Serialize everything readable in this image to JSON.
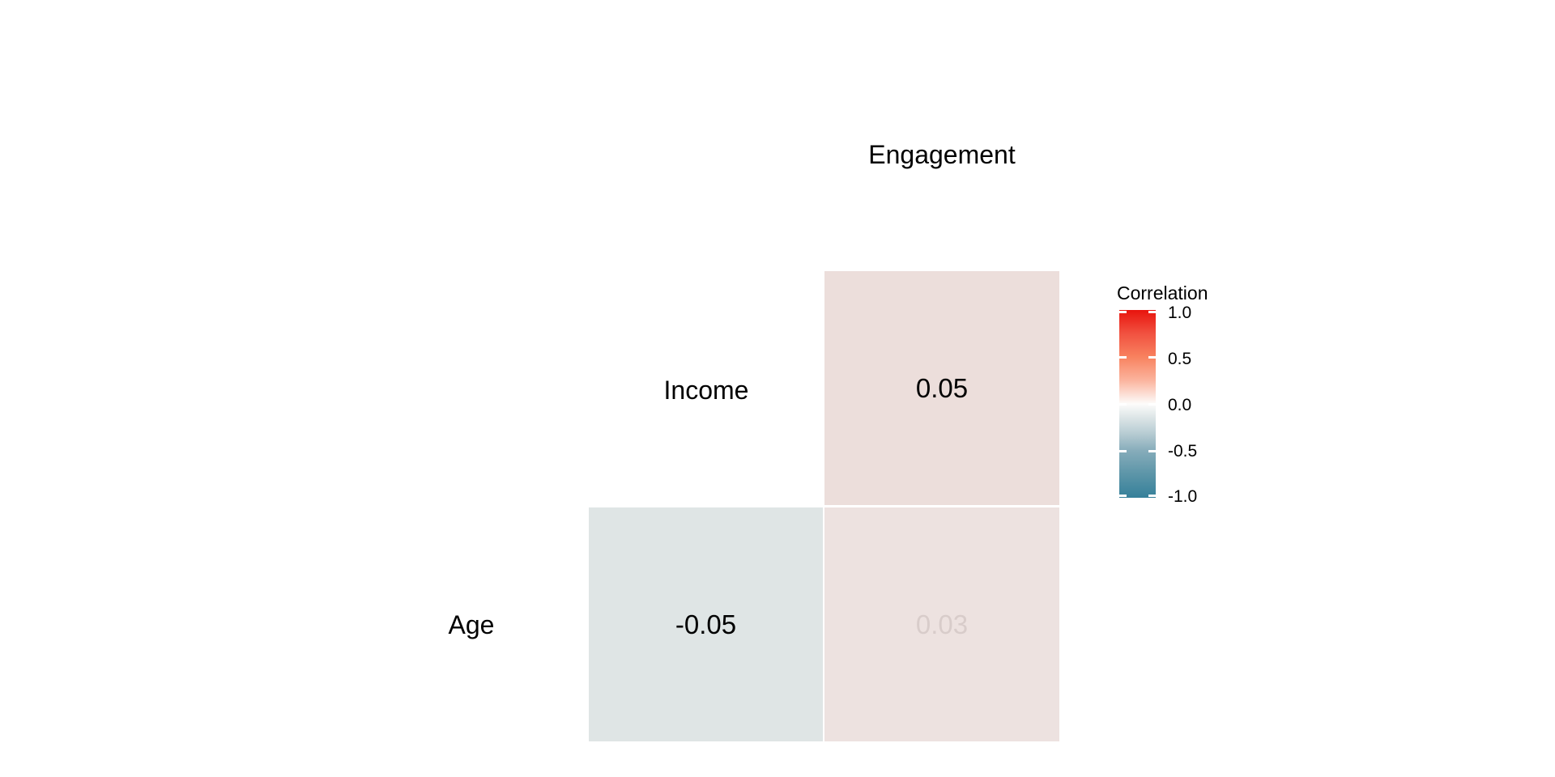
{
  "chart_data": {
    "type": "heatmap",
    "subtype": "correlation-matrix-lower-triangle",
    "variables": [
      "Age",
      "Income",
      "Engagement"
    ],
    "cells": [
      {
        "row": "Income",
        "col": "Engagement",
        "value": 0.05,
        "label": "0.05",
        "fill": "#ECDEDB",
        "label_color": "#000000"
      },
      {
        "row": "Age",
        "col": "Income",
        "value": -0.05,
        "label": "-0.05",
        "fill": "#DFE5E5",
        "label_color": "#000000"
      },
      {
        "row": "Age",
        "col": "Engagement",
        "value": 0.03,
        "label": "0.03",
        "fill": "#EDE2E0",
        "label_color": "#D8CCCA"
      }
    ],
    "legend": {
      "title": "Correlation",
      "range": [
        -1.0,
        1.0
      ],
      "position": "right",
      "ticks": [
        "1.0",
        "0.5",
        "0.0",
        "-0.5",
        "-1.0"
      ],
      "colors": {
        "high": "#E8140D",
        "mid": "#FDFCFB",
        "low": "#35809A"
      },
      "gradient_stops": [
        [
          0,
          "#E8140D"
        ],
        [
          12.5,
          "#F15140"
        ],
        [
          25,
          "#F8825F"
        ],
        [
          37.5,
          "#FBB49E"
        ],
        [
          50,
          "#FDFCFB"
        ],
        [
          56,
          "#E2E9EA"
        ],
        [
          66,
          "#B6CBD2"
        ],
        [
          75,
          "#86ACBA"
        ],
        [
          87.5,
          "#5C95A8"
        ],
        [
          100,
          "#35809A"
        ]
      ]
    },
    "grid": false,
    "background": "#ffffff"
  }
}
